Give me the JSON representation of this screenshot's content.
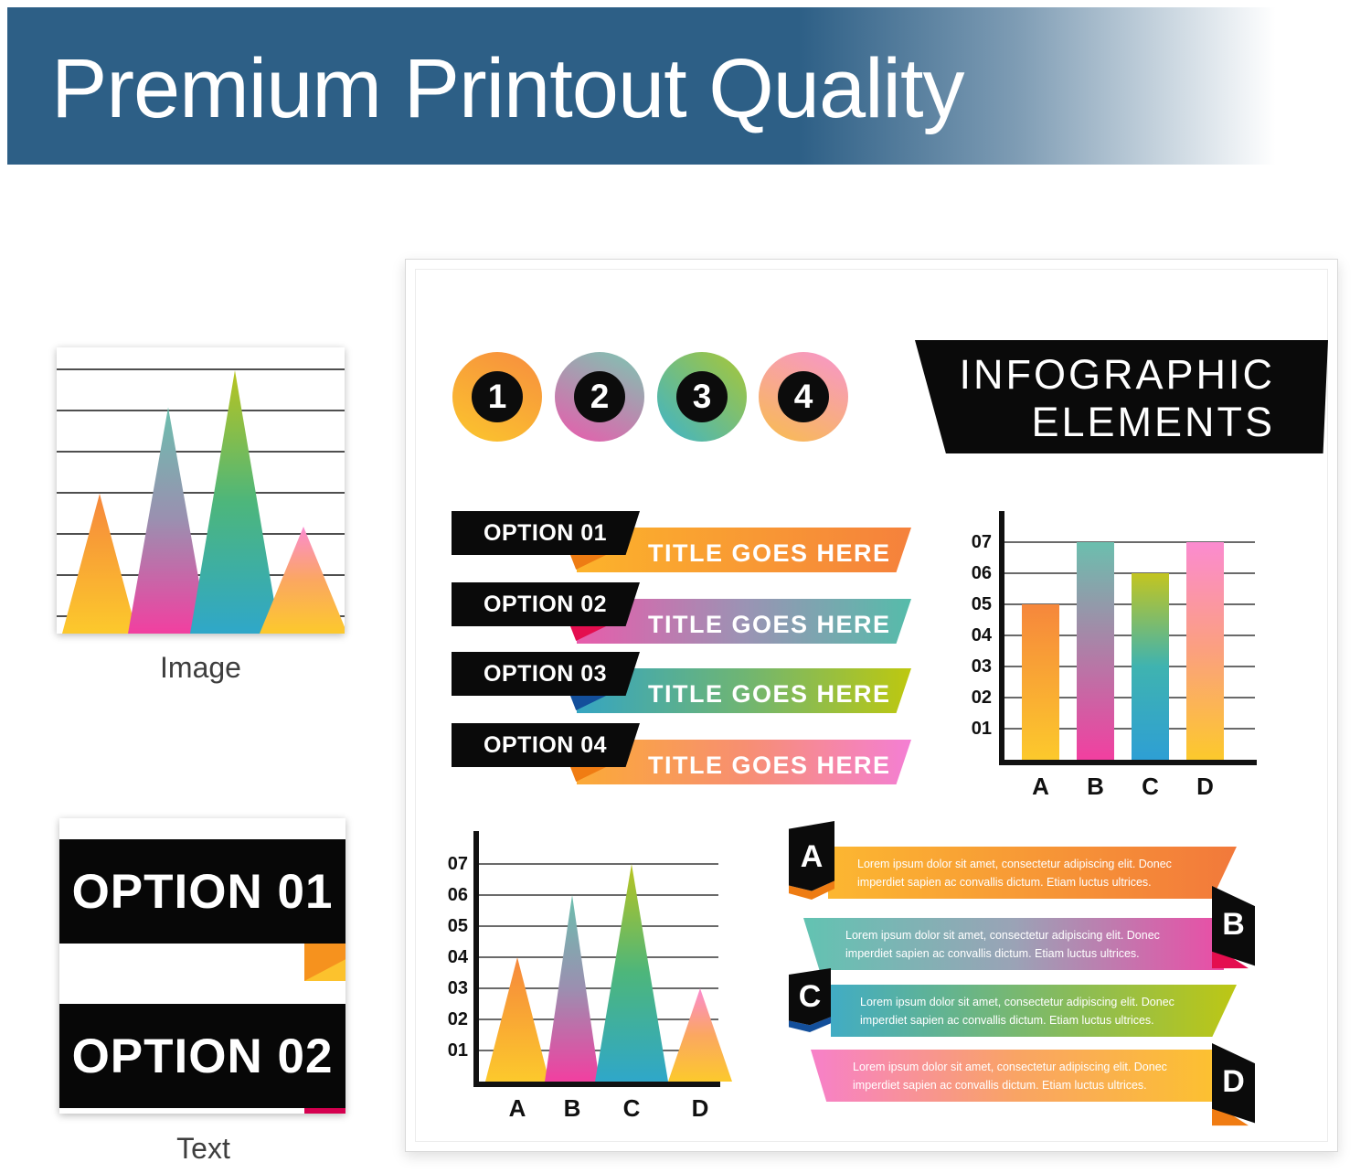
{
  "header": {
    "title": "Premium Printout Quality",
    "bg": "#2d5f86"
  },
  "samples": {
    "image": {
      "label": "Image"
    },
    "text": {
      "label": "Text",
      "option1": "OPTION 01",
      "option2": "OPTION 02",
      "fold_orange": "#f6921e",
      "fold_yellow": "#fcc22d",
      "strip_red": "#d5004f"
    }
  },
  "panel": {
    "badges": [
      {
        "n": "1",
        "gradient": [
          "#f78d3f",
          "#fbc62d"
        ],
        "dir": "205deg"
      },
      {
        "n": "2",
        "gradient": [
          "#7cc7b2",
          "#ea5aac"
        ],
        "dir": "205deg"
      },
      {
        "n": "3",
        "gradient": [
          "#aac734",
          "#3db4cb"
        ],
        "dir": "225deg"
      },
      {
        "n": "4",
        "gradient": [
          "#f795cd",
          "#f8bd4e"
        ],
        "dir": "205deg"
      }
    ],
    "banner": {
      "line1": "INFOGRAPHIC",
      "line2": "ELEMENTS",
      "bg": "#0a0a0a"
    },
    "options": [
      {
        "label": "OPTION 01",
        "title": "TITLE GOES HERE",
        "gradient": [
          "#fcb32b",
          "#f5813c"
        ],
        "fold": "#ee7c13"
      },
      {
        "label": "OPTION 02",
        "title": "TITLE GOES HERE",
        "gradient": [
          "#e85cab",
          "#9b93b4",
          "#55bcaa"
        ],
        "fold": "#e40e4f"
      },
      {
        "label": "OPTION 03",
        "title": "TITLE GOES HERE",
        "gradient": [
          "#35a5c2",
          "#6fb573",
          "#bec80f"
        ],
        "fold": "#134f9b"
      },
      {
        "label": "OPTION 04",
        "title": "TITLE GOES HERE",
        "gradient": [
          "#fbaa37",
          "#f78f71",
          "#f47fd4"
        ],
        "fold": "#f07c13"
      }
    ],
    "lorem": [
      {
        "letter": "A",
        "side": "left",
        "text": "Lorem ipsum dolor sit amet, consectetur adipiscing elit. Donec imperdiet sapien ac convallis dictum. Etiam luctus ultrices.",
        "gradient": [
          "#fcb731",
          "#f2793b"
        ],
        "fold": "#ee7c13"
      },
      {
        "letter": "B",
        "side": "right",
        "text": "Lorem ipsum dolor sit amet, consectetur adipiscing elit. Donec imperdiet sapien ac convallis dictum. Etiam luctus ultrices.",
        "gradient": [
          "#62c3b2",
          "#9aa3b6",
          "#ea4da6"
        ],
        "fold": "#e40e4f"
      },
      {
        "letter": "C",
        "side": "left",
        "text": "Lorem ipsum dolor sit amet, consectetur adipiscing elit. Donec imperdiet sapien ac convallis dictum. Etiam luctus ultrices.",
        "gradient": [
          "#41acc4",
          "#7db969",
          "#bdc714"
        ],
        "fold": "#134f9b"
      },
      {
        "letter": "D",
        "side": "right",
        "text": "Lorem ipsum dolor sit amet, consectetur adipiscing elit. Donec imperdiet sapien ac convallis dictum. Etiam luctus ultrices.",
        "gradient": [
          "#f780c9",
          "#f9a464",
          "#fcc22e"
        ],
        "fold": "#f07c13"
      }
    ]
  },
  "chart_data": [
    {
      "id": "bar-chart",
      "type": "bar",
      "categories": [
        "A",
        "B",
        "C",
        "D"
      ],
      "values": [
        5,
        7,
        6,
        7
      ],
      "y_ticks": [
        "01",
        "02",
        "03",
        "04",
        "05",
        "06",
        "07"
      ],
      "ylim": [
        0,
        7
      ],
      "grid": true,
      "legend_position": "none",
      "title": "",
      "xlabel": "",
      "ylabel": "",
      "bar_gradients": [
        [
          "#f6873c",
          "#fcc92c"
        ],
        [
          "#6bbfae",
          "#f23fa0"
        ],
        [
          "#c3c520",
          "#3fb3b0",
          "#2e9fd4"
        ],
        [
          "#fb8bd0",
          "#fba07e",
          "#fcc92c"
        ]
      ]
    },
    {
      "id": "mountain-chart",
      "type": "area",
      "categories": [
        "A",
        "B",
        "C",
        "D"
      ],
      "values": [
        4,
        6,
        7,
        3
      ],
      "y_ticks": [
        "01",
        "02",
        "03",
        "04",
        "05",
        "06",
        "07"
      ],
      "ylim": [
        0,
        7
      ],
      "grid": true,
      "legend_position": "none",
      "title": "",
      "xlabel": "",
      "ylabel": "",
      "triangle_gradients": [
        [
          "#f6873c",
          "#fcc92c"
        ],
        [
          "#6bbfae",
          "#9b8fb0",
          "#f23fa0"
        ],
        [
          "#b9c41f",
          "#4db67b",
          "#2fa7c9"
        ],
        [
          "#fb8bd0",
          "#fba761",
          "#fcc92c"
        ]
      ]
    },
    {
      "id": "image-sample-chart",
      "type": "area",
      "categories": [],
      "values": [
        3.4,
        5.5,
        6.4,
        2.6
      ],
      "ylim": [
        0,
        7
      ],
      "grid": true,
      "axes": false,
      "title": "",
      "xlabel": "",
      "ylabel": "",
      "triangle_gradients": [
        [
          "#f6873c",
          "#fcc92c"
        ],
        [
          "#6bbfae",
          "#9b8fb0",
          "#f23fa0"
        ],
        [
          "#b9c41f",
          "#4db67b",
          "#2fa7c9"
        ],
        [
          "#fb8bd0",
          "#fba761",
          "#fcc92c"
        ]
      ]
    }
  ]
}
